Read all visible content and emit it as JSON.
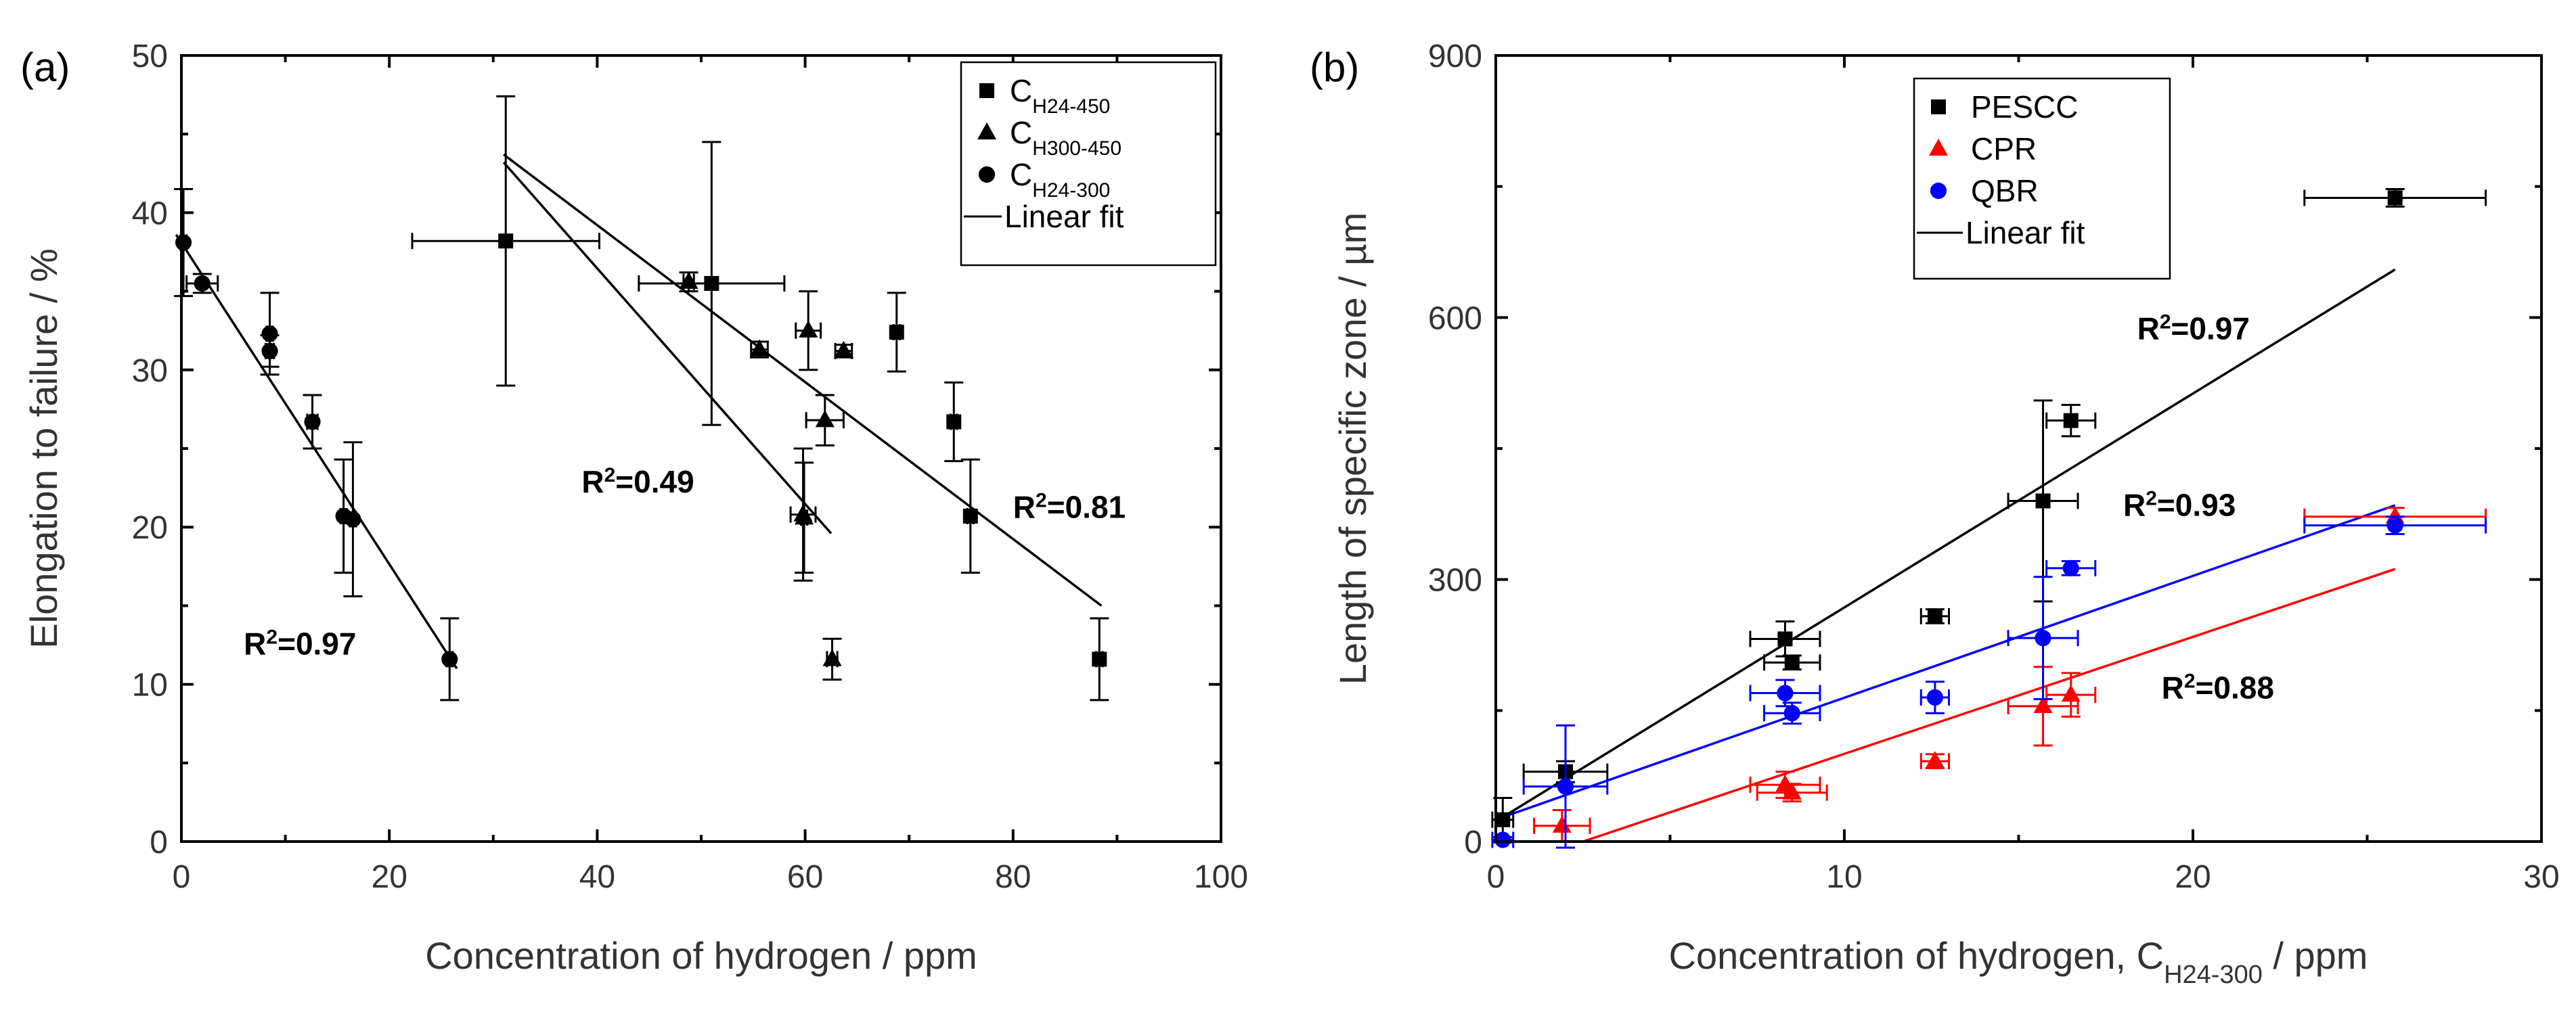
{
  "chart_data": [
    {
      "panel": "(a)",
      "type": "scatter",
      "xlabel": "Concentration of hydrogen / ppm",
      "ylabel": "Elongation to failure / %",
      "xlim": [
        0,
        100
      ],
      "ylim": [
        0,
        50
      ],
      "xticks": [
        "0",
        "20",
        "40",
        "60",
        "80",
        "100"
      ],
      "yticks": [
        "0",
        "10",
        "20",
        "30",
        "40",
        "50"
      ],
      "legend_position": "top-right",
      "series": [
        {
          "name": "C",
          "name_sub": "H24-450",
          "marker": "square",
          "color": "#000000",
          "points": [
            {
              "x": 31.2,
              "y": 38.2,
              "xerr": 9.0,
              "yerr": 9.2
            },
            {
              "x": 51.0,
              "y": 35.5,
              "xerr": 7.0,
              "yerr": 9.0
            },
            {
              "x": 68.8,
              "y": 32.4,
              "xerr": 0.3,
              "yerr": 2.5
            },
            {
              "x": 74.3,
              "y": 26.7,
              "xerr": 0.3,
              "yerr": 2.5
            },
            {
              "x": 75.9,
              "y": 20.7,
              "xerr": 0.3,
              "yerr": 3.6
            },
            {
              "x": 88.3,
              "y": 11.6,
              "xerr": 0.3,
              "yerr": 2.6
            }
          ]
        },
        {
          "name": "C",
          "name_sub": "H300-450",
          "marker": "triangle",
          "color": "#000000",
          "points": [
            {
              "x": 48.8,
              "y": 35.6,
              "xerr": 0.5,
              "yerr": 0.6
            },
            {
              "x": 55.6,
              "y": 31.3,
              "xerr": 0.8,
              "yerr": 0.5
            },
            {
              "x": 59.8,
              "y": 20.8,
              "xerr": 1.2,
              "yerr": 4.2
            },
            {
              "x": 59.9,
              "y": 20.6,
              "xerr": 0.3,
              "yerr": 3.5
            },
            {
              "x": 60.3,
              "y": 32.5,
              "xerr": 1.2,
              "yerr": 2.5
            },
            {
              "x": 61.9,
              "y": 26.8,
              "xerr": 1.8,
              "yerr": 1.6
            },
            {
              "x": 62.6,
              "y": 11.6,
              "xerr": 0.5,
              "yerr": 1.3
            },
            {
              "x": 63.7,
              "y": 31.2,
              "xerr": 0.8,
              "yerr": 0.4
            }
          ]
        },
        {
          "name": "C",
          "name_sub": "H24-300",
          "marker": "circle",
          "color": "#000000",
          "points": [
            {
              "x": 0.2,
              "y": 38.1,
              "xerr": 0.3,
              "yerr": 3.4
            },
            {
              "x": 2.0,
              "y": 35.5,
              "xerr": 1.5,
              "yerr": 0.6
            },
            {
              "x": 8.5,
              "y": 32.3,
              "xerr": 0.3,
              "yerr": 2.6
            },
            {
              "x": 8.5,
              "y": 31.2,
              "xerr": 0.4,
              "yerr": 1.0
            },
            {
              "x": 12.6,
              "y": 26.7,
              "xerr": 0.5,
              "yerr": 1.7
            },
            {
              "x": 15.6,
              "y": 20.7,
              "xerr": 0.3,
              "yerr": 3.6
            },
            {
              "x": 16.5,
              "y": 20.5,
              "xerr": 0.3,
              "yerr": 4.9
            },
            {
              "x": 25.8,
              "y": 11.6,
              "xerr": 0.3,
              "yerr": 2.6
            }
          ]
        }
      ],
      "fits": [
        {
          "name": "Linear fit",
          "color": "#000000",
          "from": [
            -0.5,
            38.6
          ],
          "to": [
            26.5,
            11.0
          ],
          "r2": "0.97",
          "r2_anchor": [
            6,
            11.9
          ]
        },
        {
          "name": "Linear fit",
          "color": "#000000",
          "from": [
            31.0,
            43.2
          ],
          "to": [
            62.5,
            19.6
          ],
          "r2": "0.49",
          "r2_anchor": [
            38.5,
            22.2
          ]
        },
        {
          "name": "Linear fit",
          "color": "#000000",
          "from": [
            31.0,
            43.7
          ],
          "to": [
            88.5,
            15.0
          ],
          "r2": "0.81",
          "r2_anchor": [
            80.0,
            20.6
          ]
        }
      ],
      "legend_fit_label": "Linear fit",
      "annotation_label": "R",
      "annotation_sup": "2"
    },
    {
      "panel": "(b)",
      "type": "scatter",
      "xlabel": "Concentration of hydrogen, C",
      "xlabel_sub": "H24-300",
      "xlabel_tail": " / ppm",
      "ylabel": "Length of specific zone / µm",
      "xlim": [
        0,
        30
      ],
      "ylim": [
        0,
        900
      ],
      "xticks": [
        "0",
        "10",
        "20",
        "30"
      ],
      "yticks": [
        "0",
        "300",
        "600",
        "900"
      ],
      "legend_position": "top-left",
      "series": [
        {
          "name": "PESCC",
          "marker": "square",
          "color": "#000000",
          "points": [
            {
              "x": 0.2,
              "y": 25,
              "xerr": 0.3,
              "yerr": 25
            },
            {
              "x": 2.0,
              "y": 80,
              "xerr": 1.2,
              "yerr": 12
            },
            {
              "x": 8.3,
              "y": 232,
              "xerr": 1.0,
              "yerr": 20
            },
            {
              "x": 8.5,
              "y": 205,
              "xerr": 0.8,
              "yerr": 8
            },
            {
              "x": 12.6,
              "y": 258,
              "xerr": 0.4,
              "yerr": 8
            },
            {
              "x": 15.7,
              "y": 390,
              "xerr": 1.0,
              "yerr": 115
            },
            {
              "x": 16.5,
              "y": 482,
              "xerr": 0.7,
              "yerr": 18
            },
            {
              "x": 25.8,
              "y": 737,
              "xerr": 2.6,
              "yerr": 10
            }
          ]
        },
        {
          "name": "CPR",
          "marker": "triangle",
          "color": "#ff0000",
          "points": [
            {
              "x": 1.9,
              "y": 18,
              "xerr": 0.8,
              "yerr": 18
            },
            {
              "x": 8.3,
              "y": 65,
              "xerr": 1.0,
              "yerr": 15
            },
            {
              "x": 8.5,
              "y": 56,
              "xerr": 1.0,
              "yerr": 10
            },
            {
              "x": 12.6,
              "y": 92,
              "xerr": 0.4,
              "yerr": 8
            },
            {
              "x": 15.7,
              "y": 155,
              "xerr": 1.0,
              "yerr": 45
            },
            {
              "x": 16.5,
              "y": 168,
              "xerr": 0.7,
              "yerr": 25
            },
            {
              "x": 25.8,
              "y": 372,
              "xerr": 2.6,
              "yerr": 10
            }
          ]
        },
        {
          "name": "QBR",
          "marker": "circle",
          "color": "#0000ff",
          "points": [
            {
              "x": 0.2,
              "y": 2,
              "xerr": 0.3,
              "yerr": 3
            },
            {
              "x": 2.0,
              "y": 63,
              "xerr": 1.2,
              "yerr": 70
            },
            {
              "x": 8.3,
              "y": 170,
              "xerr": 1.0,
              "yerr": 15
            },
            {
              "x": 8.5,
              "y": 147,
              "xerr": 0.8,
              "yerr": 12
            },
            {
              "x": 12.6,
              "y": 165,
              "xerr": 0.4,
              "yerr": 18
            },
            {
              "x": 15.7,
              "y": 233,
              "xerr": 1.0,
              "yerr": 70
            },
            {
              "x": 16.5,
              "y": 313,
              "xerr": 0.7,
              "yerr": 8
            },
            {
              "x": 25.8,
              "y": 362,
              "xerr": 2.6,
              "yerr": 10
            }
          ]
        }
      ],
      "fits": [
        {
          "name": "Linear fit",
          "color": "#000000",
          "from": [
            0.2,
            28
          ],
          "to": [
            25.8,
            655
          ],
          "r2": "0.97",
          "r2_anchor": [
            18.4,
            575
          ]
        },
        {
          "name": "Linear fit",
          "color": "#0000ff",
          "from": [
            0.2,
            28
          ],
          "to": [
            25.8,
            385
          ],
          "r2": "0.93",
          "r2_anchor": [
            18.0,
            373
          ]
        },
        {
          "name": "Linear fit",
          "color": "#ff0000",
          "from": [
            2.5,
            0
          ],
          "to": [
            25.8,
            312
          ],
          "r2": "0.88",
          "r2_anchor": [
            19.1,
            164
          ]
        }
      ],
      "legend_fit_label": "Linear fit",
      "annotation_label": "R",
      "annotation_sup": "2"
    }
  ]
}
